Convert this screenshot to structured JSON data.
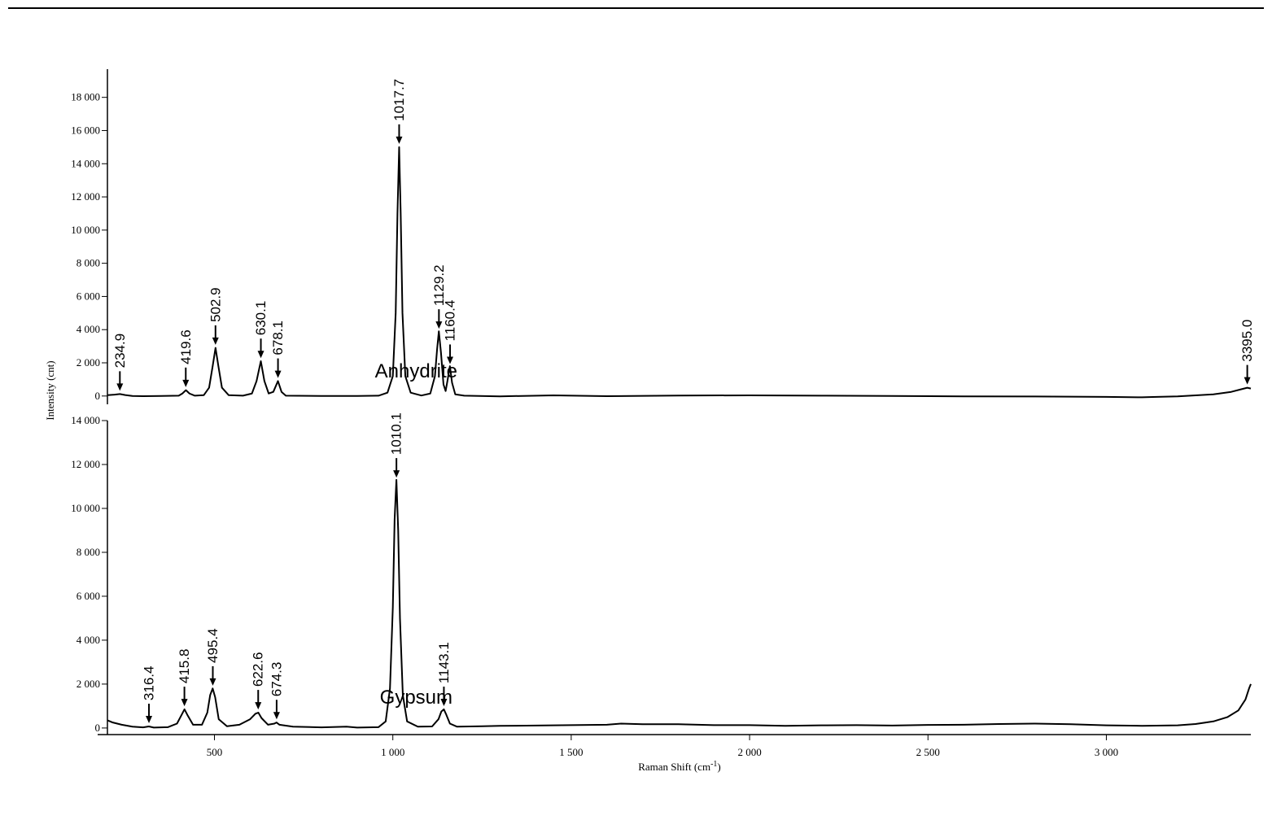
{
  "chart_data": [
    {
      "type": "line",
      "ylabel": "Intensity (cnt)",
      "xlim": [
        200,
        3405
      ],
      "ylim": [
        -500,
        19700
      ],
      "yticks": [
        0,
        {
          "value": 2000,
          "label": "2 000"
        },
        {
          "value": 4000,
          "label": "4 000"
        },
        {
          "value": 6000,
          "label": "6 000"
        },
        {
          "value": 8000,
          "label": "8 000"
        },
        {
          "value": 10000,
          "label": "10 000"
        },
        {
          "value": 12000,
          "label": "12 000"
        },
        {
          "value": 14000,
          "label": "14 000"
        },
        {
          "value": 16000,
          "label": "16 000"
        },
        {
          "value": 18000,
          "label": "18 000"
        }
      ],
      "x": [
        200,
        220,
        235,
        250,
        270,
        300,
        350,
        400,
        410,
        420,
        430,
        445,
        470,
        485,
        495,
        503,
        511,
        521,
        540,
        580,
        605,
        618,
        630,
        640,
        652,
        665,
        678,
        688,
        700,
        800,
        900,
        960,
        985,
        1000,
        1008,
        1013,
        1017.7,
        1022,
        1027,
        1035,
        1050,
        1080,
        1105,
        1118,
        1124,
        1129,
        1135,
        1142,
        1148,
        1153,
        1160,
        1166,
        1175,
        1200,
        1300,
        1450,
        1600,
        1800,
        2000,
        2200,
        2400,
        2600,
        2800,
        3000,
        3100,
        3130,
        3200,
        3300,
        3350,
        3395,
        3405
      ],
      "series": [
        {
          "name": "Anhydrite",
          "color": "#000000",
          "values": [
            50,
            80,
            120,
            60,
            0,
            -10,
            0,
            20,
            150,
            350,
            150,
            20,
            50,
            500,
            1800,
            2900,
            1800,
            500,
            50,
            20,
            150,
            900,
            2100,
            900,
            150,
            250,
            900,
            250,
            20,
            0,
            0,
            20,
            200,
            1200,
            5000,
            11000,
            15000,
            11000,
            5000,
            1200,
            200,
            30,
            150,
            1200,
            2800,
            3900,
            2600,
            700,
            300,
            900,
            1800,
            800,
            100,
            20,
            -20,
            40,
            -10,
            30,
            40,
            20,
            0,
            -20,
            -30,
            -50,
            -80,
            -60,
            -20,
            100,
            250,
            500,
            450
          ]
        }
      ],
      "peaks": [
        234.9,
        419.6,
        502.9,
        630.1,
        678.1,
        1017.7,
        1129.2,
        1160.4,
        {
          "value": 3395.0,
          "label": "3395.0"
        }
      ]
    },
    {
      "type": "line",
      "xlabel": {
        "text": "Raman Shift (cm",
        "sup": "-1",
        "tail": ")"
      },
      "xlim": [
        200,
        3405
      ],
      "xticks": [
        500,
        {
          "value": 1000,
          "label": "1 000"
        },
        {
          "value": 1500,
          "label": "1 500"
        },
        {
          "value": 2000,
          "label": "2 000"
        },
        {
          "value": 2500,
          "label": "2 500"
        },
        {
          "value": 3000,
          "label": "3 000"
        }
      ],
      "ylim": [
        -300,
        14000
      ],
      "yticks": [
        0,
        {
          "value": 2000,
          "label": "2 000"
        },
        {
          "value": 4000,
          "label": "4 000"
        },
        {
          "value": 6000,
          "label": "6 000"
        },
        {
          "value": 8000,
          "label": "8 000"
        },
        {
          "value": 10000,
          "label": "10 000"
        },
        {
          "value": 12000,
          "label": "12 000"
        },
        {
          "value": 14000,
          "label": "14 000"
        }
      ],
      "x": [
        200,
        215,
        240,
        270,
        300,
        316,
        330,
        370,
        395,
        408,
        416,
        424,
        440,
        465,
        480,
        488,
        495,
        502,
        512,
        535,
        570,
        600,
        615,
        623,
        632,
        650,
        668,
        674,
        682,
        720,
        800,
        870,
        900,
        960,
        980,
        992,
        1000,
        1005,
        1010,
        1015,
        1020,
        1028,
        1040,
        1070,
        1110,
        1128,
        1136,
        1143,
        1150,
        1160,
        1180,
        1250,
        1300,
        1400,
        1500,
        1600,
        1640,
        1700,
        1800,
        1900,
        2000,
        2100,
        2200,
        2300,
        2400,
        2500,
        2600,
        2700,
        2800,
        2900,
        3000,
        3100,
        3200,
        3250,
        3300,
        3340,
        3370,
        3390,
        3400,
        3405
      ],
      "series": [
        {
          "name": "Gypsum",
          "color": "#000000",
          "values": [
            350,
            250,
            150,
            60,
            30,
            70,
            20,
            40,
            200,
            600,
            850,
            600,
            150,
            150,
            700,
            1500,
            1800,
            1400,
            400,
            80,
            150,
            400,
            650,
            700,
            450,
            150,
            200,
            250,
            150,
            60,
            30,
            60,
            20,
            40,
            300,
            1800,
            5500,
            9500,
            11300,
            9000,
            5000,
            1500,
            300,
            60,
            70,
            400,
            750,
            850,
            600,
            200,
            60,
            80,
            100,
            110,
            130,
            150,
            200,
            170,
            170,
            130,
            130,
            100,
            120,
            130,
            110,
            140,
            150,
            180,
            200,
            170,
            120,
            100,
            120,
            180,
            300,
            500,
            800,
            1300,
            1800,
            2000
          ]
        }
      ],
      "peaks": [
        316.4,
        415.8,
        495.4,
        622.6,
        674.3,
        1010.1,
        1143.1
      ]
    }
  ]
}
